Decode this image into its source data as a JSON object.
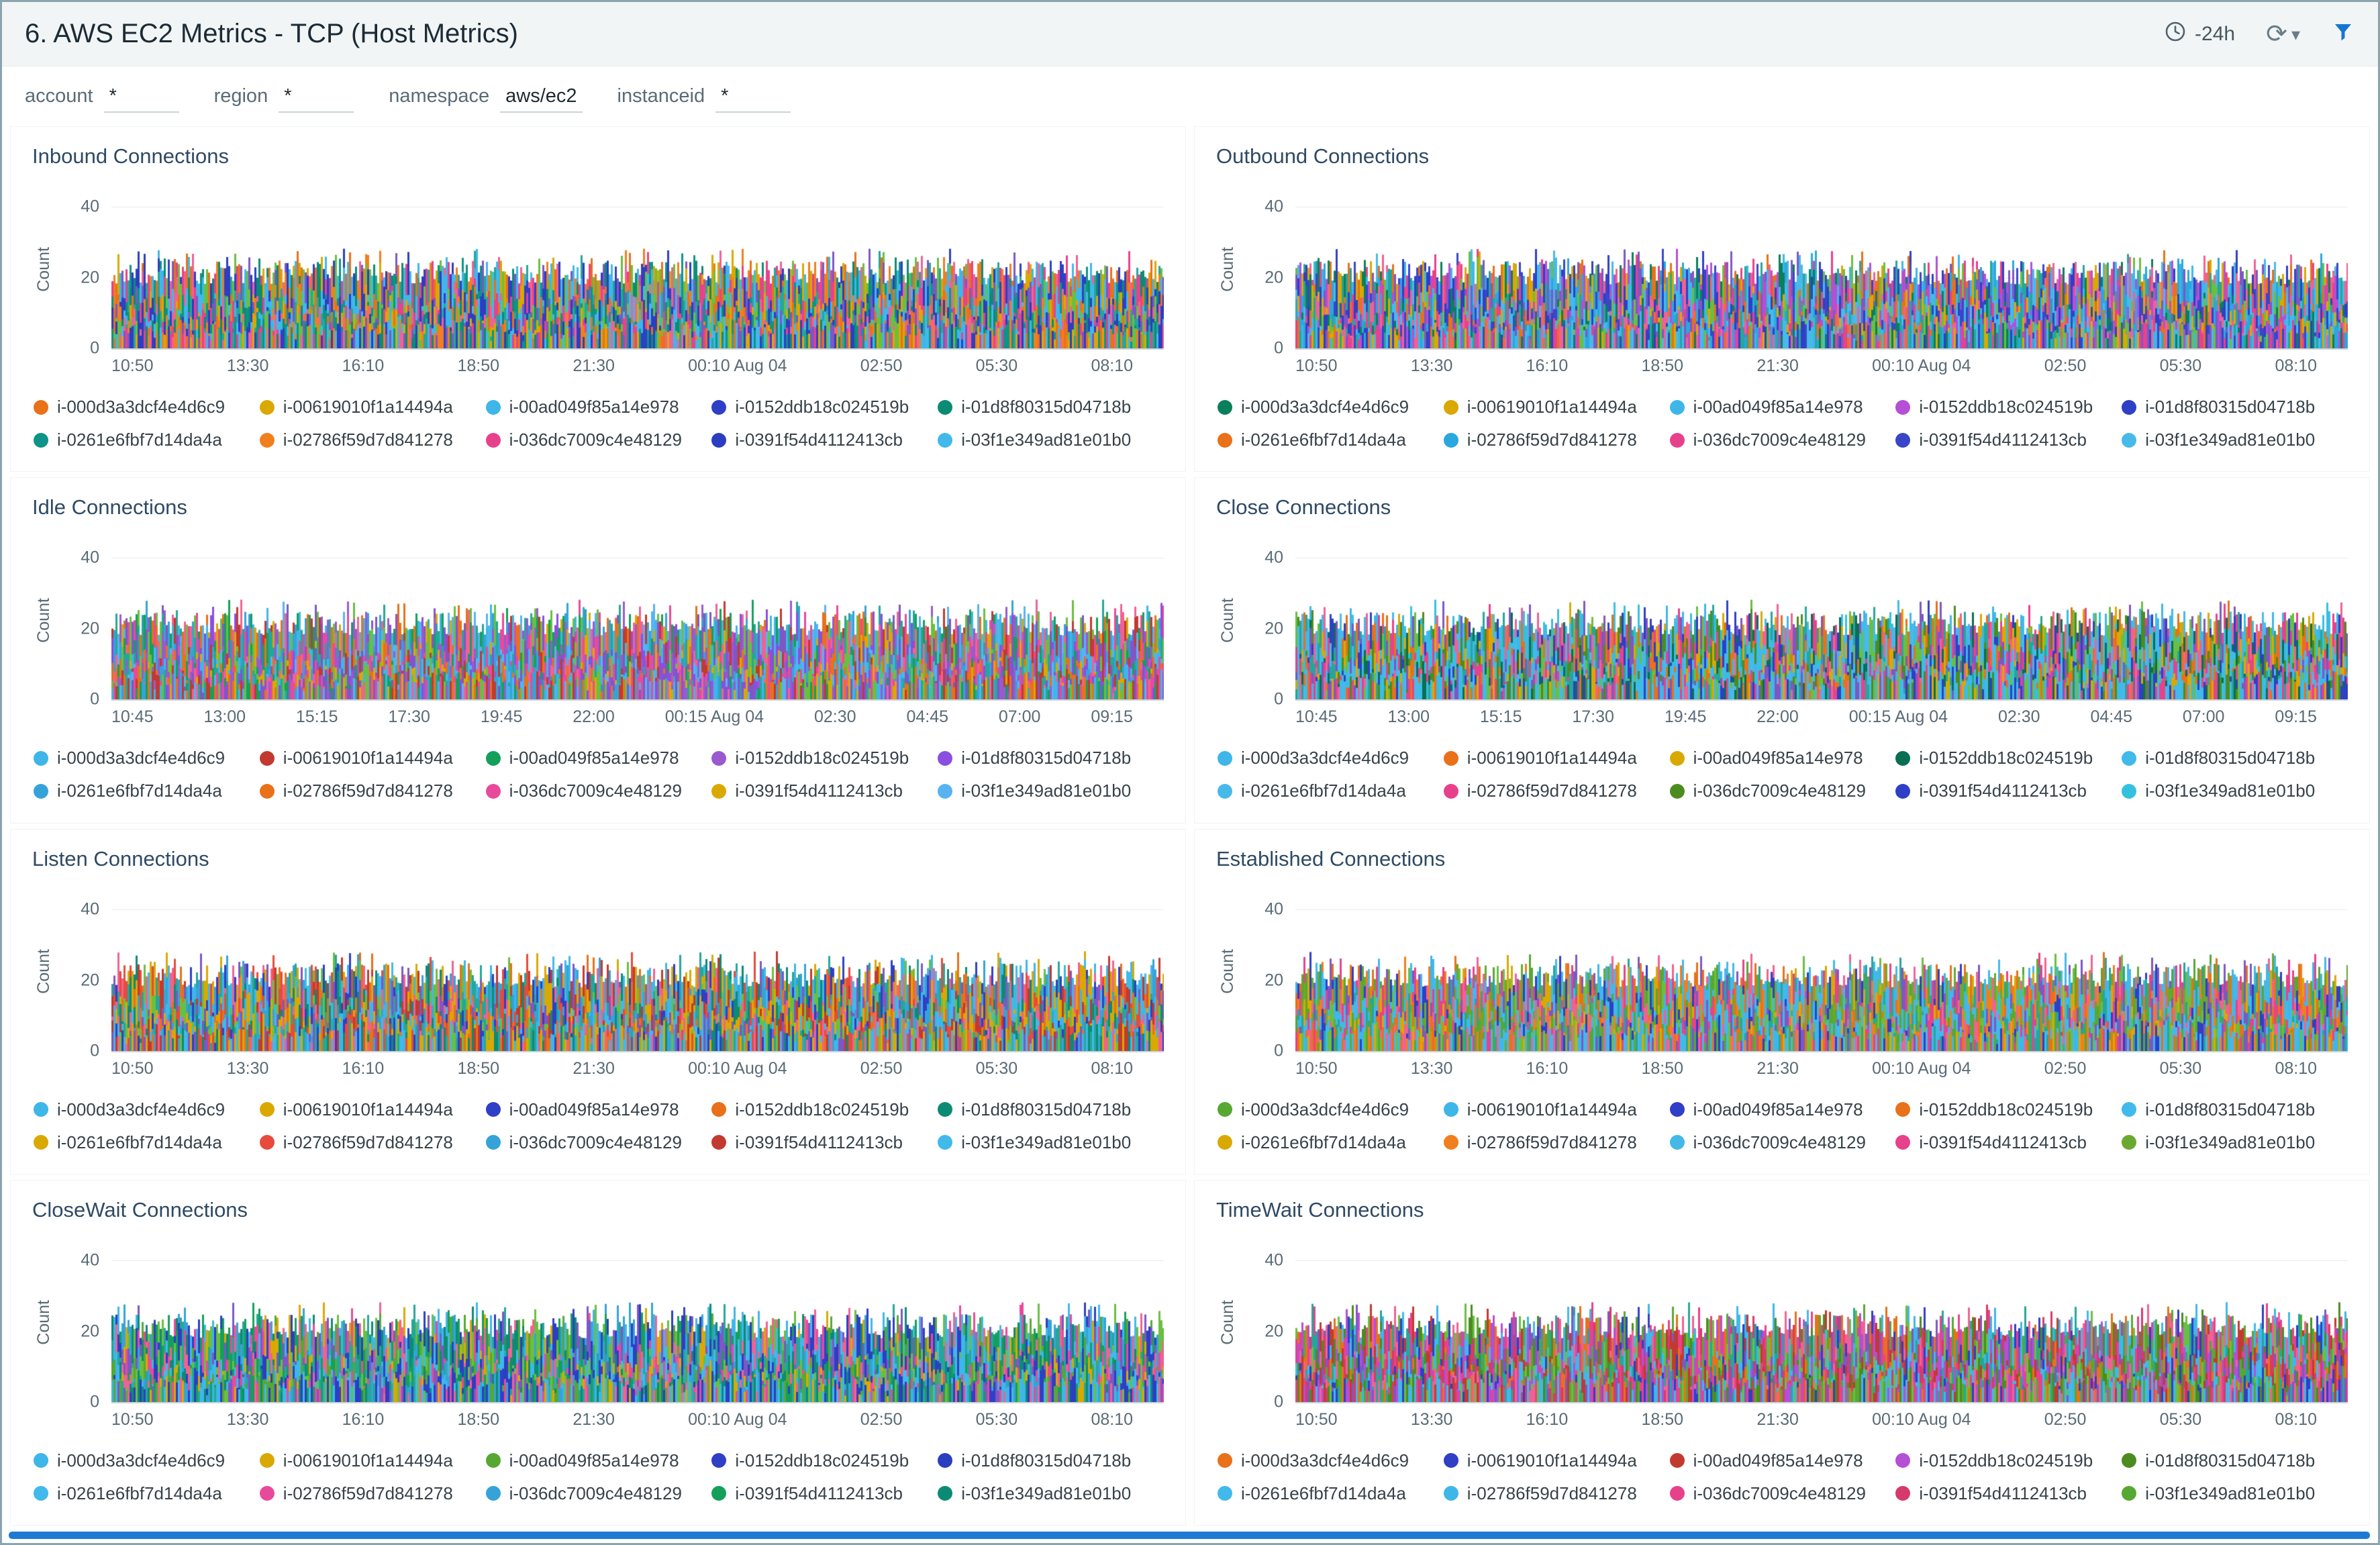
{
  "header": {
    "title": "6. AWS EC2 Metrics - TCP (Host Metrics)",
    "time_range": "-24h",
    "icons": {
      "refresh": "⟳",
      "caret": "▾"
    }
  },
  "filters": [
    {
      "label": "account",
      "value": "*"
    },
    {
      "label": "region",
      "value": "*"
    },
    {
      "label": "namespace",
      "value": "aws/ec2"
    },
    {
      "label": "instanceid",
      "value": "*"
    }
  ],
  "instances": [
    "i-000d3a3dcf4e4d6c9",
    "i-00619010f1a14494a",
    "i-00ad049f85a14e978",
    "i-0152ddb18c024519b",
    "i-01d8f80315d04718b",
    "i-0261e6fbf7d14da4a",
    "i-02786f59d7d841278",
    "i-036dc7009c4e48129",
    "i-0391f54d4112413cb",
    "i-03f1e349ad81e01b0"
  ],
  "xaxes": {
    "a": [
      "10:50",
      "13:30",
      "16:10",
      "18:50",
      "21:30",
      "00:10 Aug 04",
      "02:50",
      "05:30",
      "08:10"
    ],
    "b": [
      "10:45",
      "13:00",
      "15:15",
      "17:30",
      "19:45",
      "22:00",
      "00:15 Aug 04",
      "02:30",
      "04:45",
      "07:00",
      "09:15"
    ]
  },
  "y_axis": {
    "label": "Count",
    "ticks": [
      "40",
      "20",
      "0"
    ]
  },
  "noise_extra_colors": [
    "#6abf40",
    "#f06292",
    "#7e57c2",
    "#26a69a"
  ],
  "panels": [
    {
      "title": "Inbound Connections",
      "xaxis": "a",
      "seed": 101,
      "colors": [
        "#e8711a",
        "#d9a902",
        "#3eb6e8",
        "#2f3fc6",
        "#0c8b74",
        "#0d9488",
        "#f07f1e",
        "#e8418c",
        "#2b3ec0",
        "#41b9ea"
      ]
    },
    {
      "title": "Outbound Connections",
      "xaxis": "a",
      "seed": 102,
      "colors": [
        "#0a7f5c",
        "#d9a902",
        "#3eb6e8",
        "#b44fd6",
        "#2f3fc6",
        "#e8711a",
        "#2aa7dd",
        "#e8418c",
        "#3946c8",
        "#49b9ea"
      ]
    },
    {
      "title": "Idle Connections",
      "xaxis": "b",
      "seed": 103,
      "colors": [
        "#3eb6e8",
        "#c23a2f",
        "#14a05a",
        "#9b59d0",
        "#8a4fe0",
        "#35a3d8",
        "#e8711a",
        "#e84a9b",
        "#d9a902",
        "#58b3f0"
      ]
    },
    {
      "title": "Close Connections",
      "xaxis": "b",
      "seed": 104,
      "colors": [
        "#3eb6e8",
        "#e8711a",
        "#d9a902",
        "#0a6e53",
        "#41b9ea",
        "#49b9ea",
        "#e8418c",
        "#4c8c1e",
        "#2f3fc6",
        "#35c0e0"
      ]
    },
    {
      "title": "Listen Connections",
      "xaxis": "a",
      "seed": 105,
      "colors": [
        "#3eb6e8",
        "#d9a902",
        "#2f3fc6",
        "#e8711a",
        "#0c8b74",
        "#d9a902",
        "#e84a3c",
        "#35a3d8",
        "#c23a2f",
        "#41b9ea"
      ]
    },
    {
      "title": "Established Connections",
      "xaxis": "a",
      "seed": 106,
      "colors": [
        "#57a832",
        "#3eb6e8",
        "#2f3fc6",
        "#e8711a",
        "#41b9ea",
        "#d9a902",
        "#f07f1e",
        "#45b8e8",
        "#e8418c",
        "#6aa92f"
      ]
    },
    {
      "title": "CloseWait Connections",
      "xaxis": "a",
      "seed": 107,
      "colors": [
        "#3eb6e8",
        "#d9a902",
        "#57a832",
        "#2f3fc6",
        "#2b3ec0",
        "#41b9ea",
        "#e84a9b",
        "#35a3d8",
        "#14a05a",
        "#0c8b74"
      ]
    },
    {
      "title": "TimeWait Connections",
      "xaxis": "a",
      "seed": 108,
      "colors": [
        "#e8711a",
        "#2f3fc6",
        "#c23a2f",
        "#b44fd6",
        "#4c8c1e",
        "#41b9ea",
        "#3eb6e8",
        "#e8418c",
        "#d63a6a",
        "#57a832"
      ]
    }
  ],
  "chart_data": [
    {
      "type": "area",
      "title": "Inbound Connections",
      "ylabel": "Count",
      "ylim": [
        0,
        45
      ],
      "yticks": [
        0,
        20,
        40
      ],
      "xticks": [
        "10:50",
        "13:30",
        "16:10",
        "18:50",
        "21:30",
        "00:10 Aug 04",
        "02:50",
        "05:30",
        "08:10"
      ],
      "series": [
        "i-000d3a3dcf4e4d6c9",
        "i-00619010f1a14494a",
        "i-00ad049f85a14e978",
        "i-0152ddb18c024519b",
        "i-01d8f80315d04718b",
        "i-0261e6fbf7d14da4a",
        "i-02786f59d7d841278",
        "i-036dc7009c4e48129",
        "i-0391f54d4112413cb",
        "i-03f1e349ad81e01b0"
      ],
      "approx_value_range": [
        0,
        25
      ],
      "pattern": "dense overlapping noisy series over last 24h"
    },
    {
      "type": "area",
      "title": "Outbound Connections",
      "ylabel": "Count",
      "ylim": [
        0,
        45
      ],
      "yticks": [
        0,
        20,
        40
      ],
      "xticks": [
        "10:50",
        "13:30",
        "16:10",
        "18:50",
        "21:30",
        "00:10 Aug 04",
        "02:50",
        "05:30",
        "08:10"
      ],
      "series": [
        "i-000d3a3dcf4e4d6c9",
        "i-00619010f1a14494a",
        "i-00ad049f85a14e978",
        "i-0152ddb18c024519b",
        "i-01d8f80315d04718b",
        "i-0261e6fbf7d14da4a",
        "i-02786f59d7d841278",
        "i-036dc7009c4e48129",
        "i-0391f54d4112413cb",
        "i-03f1e349ad81e01b0"
      ],
      "approx_value_range": [
        0,
        25
      ],
      "pattern": "dense overlapping noisy series over last 24h"
    },
    {
      "type": "area",
      "title": "Idle Connections",
      "ylabel": "Count",
      "ylim": [
        0,
        45
      ],
      "yticks": [
        0,
        20,
        40
      ],
      "xticks": [
        "10:45",
        "13:00",
        "15:15",
        "17:30",
        "19:45",
        "22:00",
        "00:15 Aug 04",
        "02:30",
        "04:45",
        "07:00",
        "09:15"
      ],
      "series": [
        "i-000d3a3dcf4e4d6c9",
        "i-00619010f1a14494a",
        "i-00ad049f85a14e978",
        "i-0152ddb18c024519b",
        "i-01d8f80315d04718b",
        "i-0261e6fbf7d14da4a",
        "i-02786f59d7d841278",
        "i-036dc7009c4e48129",
        "i-0391f54d4112413cb",
        "i-03f1e349ad81e01b0"
      ],
      "approx_value_range": [
        0,
        25
      ],
      "pattern": "dense overlapping noisy series over last 24h"
    },
    {
      "type": "area",
      "title": "Close Connections",
      "ylabel": "Count",
      "ylim": [
        0,
        45
      ],
      "yticks": [
        0,
        20,
        40
      ],
      "xticks": [
        "10:45",
        "13:00",
        "15:15",
        "17:30",
        "19:45",
        "22:00",
        "00:15 Aug 04",
        "02:30",
        "04:45",
        "07:00",
        "09:15"
      ],
      "series": [
        "i-000d3a3dcf4e4d6c9",
        "i-00619010f1a14494a",
        "i-00ad049f85a14e978",
        "i-0152ddb18c024519b",
        "i-01d8f80315d04718b",
        "i-0261e6fbf7d14da4a",
        "i-02786f59d7d841278",
        "i-036dc7009c4e48129",
        "i-0391f54d4112413cb",
        "i-03f1e349ad81e01b0"
      ],
      "approx_value_range": [
        0,
        25
      ],
      "pattern": "dense overlapping noisy series over last 24h"
    },
    {
      "type": "area",
      "title": "Listen Connections",
      "ylabel": "Count",
      "ylim": [
        0,
        45
      ],
      "yticks": [
        0,
        20,
        40
      ],
      "xticks": [
        "10:50",
        "13:30",
        "16:10",
        "18:50",
        "21:30",
        "00:10 Aug 04",
        "02:50",
        "05:30",
        "08:10"
      ],
      "series": [
        "i-000d3a3dcf4e4d6c9",
        "i-00619010f1a14494a",
        "i-00ad049f85a14e978",
        "i-0152ddb18c024519b",
        "i-01d8f80315d04718b",
        "i-0261e6fbf7d14da4a",
        "i-02786f59d7d841278",
        "i-036dc7009c4e48129",
        "i-0391f54d4112413cb",
        "i-03f1e349ad81e01b0"
      ],
      "approx_value_range": [
        0,
        25
      ],
      "pattern": "dense overlapping noisy series over last 24h"
    },
    {
      "type": "area",
      "title": "Established Connections",
      "ylabel": "Count",
      "ylim": [
        0,
        45
      ],
      "yticks": [
        0,
        20,
        40
      ],
      "xticks": [
        "10:50",
        "13:30",
        "16:10",
        "18:50",
        "21:30",
        "00:10 Aug 04",
        "02:50",
        "05:30",
        "08:10"
      ],
      "series": [
        "i-000d3a3dcf4e4d6c9",
        "i-00619010f1a14494a",
        "i-00ad049f85a14e978",
        "i-0152ddb18c024519b",
        "i-01d8f80315d04718b",
        "i-0261e6fbf7d14da4a",
        "i-02786f59d7d841278",
        "i-036dc7009c4e48129",
        "i-0391f54d4112413cb",
        "i-03f1e349ad81e01b0"
      ],
      "approx_value_range": [
        0,
        25
      ],
      "pattern": "dense overlapping noisy series over last 24h"
    },
    {
      "type": "area",
      "title": "CloseWait Connections",
      "ylabel": "Count",
      "ylim": [
        0,
        45
      ],
      "yticks": [
        0,
        20,
        40
      ],
      "xticks": [
        "10:50",
        "13:30",
        "16:10",
        "18:50",
        "21:30",
        "00:10 Aug 04",
        "02:50",
        "05:30",
        "08:10"
      ],
      "series": [
        "i-000d3a3dcf4e4d6c9",
        "i-00619010f1a14494a",
        "i-00ad049f85a14e978",
        "i-0152ddb18c024519b",
        "i-01d8f80315d04718b",
        "i-0261e6fbf7d14da4a",
        "i-02786f59d7d841278",
        "i-036dc7009c4e48129",
        "i-0391f54d4112413cb",
        "i-03f1e349ad81e01b0"
      ],
      "approx_value_range": [
        0,
        25
      ],
      "pattern": "dense overlapping noisy series over last 24h"
    },
    {
      "type": "area",
      "title": "TimeWait Connections",
      "ylabel": "Count",
      "ylim": [
        0,
        45
      ],
      "yticks": [
        0,
        20,
        40
      ],
      "xticks": [
        "10:50",
        "13:30",
        "16:10",
        "18:50",
        "21:30",
        "00:10 Aug 04",
        "02:50",
        "05:30",
        "08:10"
      ],
      "series": [
        "i-000d3a3dcf4e4d6c9",
        "i-00619010f1a14494a",
        "i-00ad049f85a14e978",
        "i-0152ddb18c024519b",
        "i-01d8f80315d04718b",
        "i-0261e6fbf7d14da4a",
        "i-02786f59d7d841278",
        "i-036dc7009c4e48129",
        "i-0391f54d4112413cb",
        "i-03f1e349ad81e01b0"
      ],
      "approx_value_range": [
        0,
        25
      ],
      "pattern": "dense overlapping noisy series over last 24h"
    }
  ]
}
